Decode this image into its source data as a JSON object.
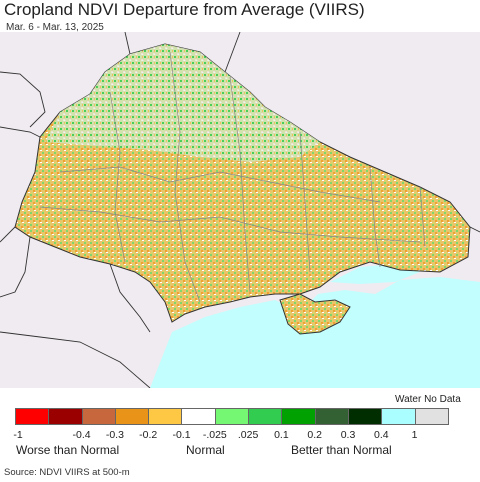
{
  "header": {
    "title": "Cropland NDVI Departure from Average (VIIRS)",
    "subtitle": "Mar. 6 - Mar. 13, 2025"
  },
  "legend": {
    "title": "Water No Data",
    "colors": [
      "#fe0000",
      "#9b0000",
      "#c6673e",
      "#e99318",
      "#fec844",
      "#ffffff",
      "#76f774",
      "#32cd50",
      "#02a102",
      "#336133",
      "#012e00",
      "#aafeff",
      "#e1e1e1"
    ],
    "ticks": [
      "-1",
      "-0.4",
      "-0.3",
      "-0.2",
      "-0.1",
      "-.025",
      ".025",
      "0.1",
      "0.2",
      "0.3",
      "0.4",
      "1"
    ],
    "categories": {
      "worse": "Worse than Normal",
      "normal": "Normal",
      "better": "Better than Normal"
    }
  },
  "map": {
    "sea_color": "#c2fefe",
    "background_color": "#f0ebf0",
    "border_color": "#333333",
    "region_color": "#888888"
  },
  "footer": {
    "source": "Source: NDVI VIIRS at 500-m"
  }
}
